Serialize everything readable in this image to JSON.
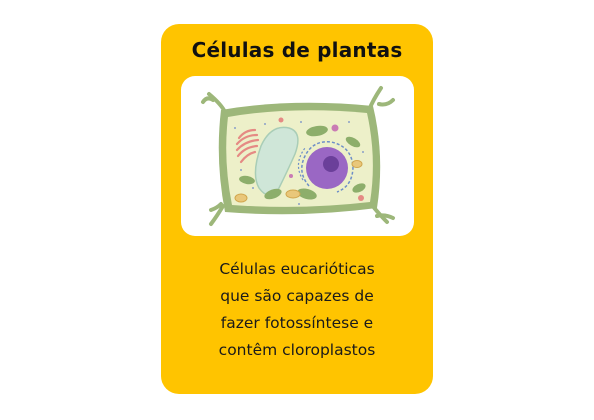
{
  "card": {
    "title": "Células de plantas",
    "description_lines": [
      "Células eucarióticas",
      "que são capazes de",
      "fazer fotossíntese e",
      "contêm cloroplastos"
    ]
  },
  "colors": {
    "card_background": "#FFC400",
    "image_background": "#FFFFFF",
    "cell_wall": "#9DB77A",
    "cytoplasm": "#EDF0C9",
    "vacuole": "#CFE6D8",
    "nucleus": "#9A67C4",
    "nucleolus": "#6B3F9A",
    "chloroplast": "#8DAE6B",
    "golgi": "#E58A84",
    "mitochondria": "#E9C77A"
  },
  "icons": {
    "illustration": "plant-cell-illustration"
  }
}
